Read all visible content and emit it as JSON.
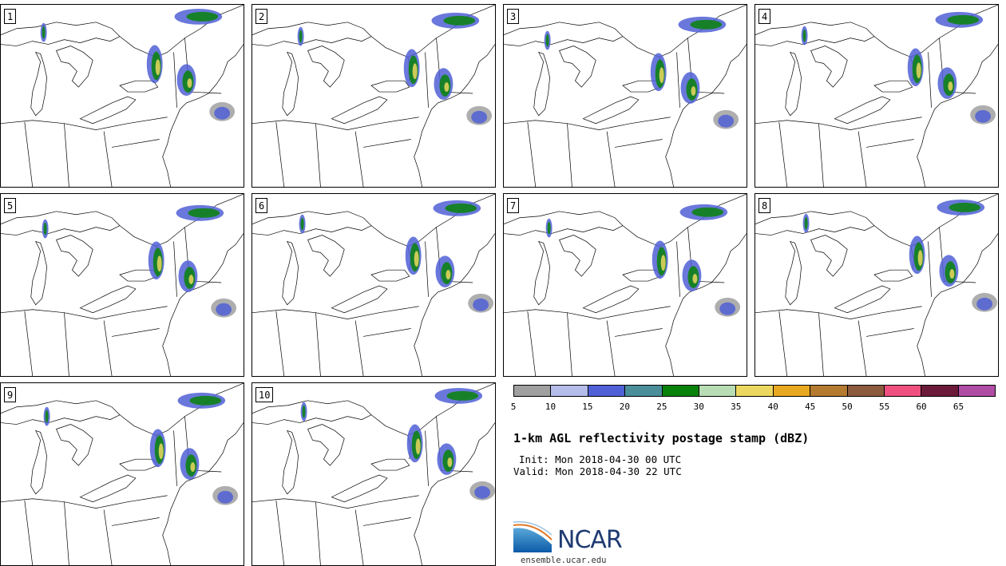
{
  "panels": [
    {
      "label": "1"
    },
    {
      "label": "2"
    },
    {
      "label": "3"
    },
    {
      "label": "4"
    },
    {
      "label": "5"
    },
    {
      "label": "6"
    },
    {
      "label": "7"
    },
    {
      "label": "8"
    },
    {
      "label": "9"
    },
    {
      "label": "10"
    }
  ],
  "colorbar": {
    "colors": [
      "#a0a0a0",
      "#b4bcea",
      "#5060d6",
      "#4a8e9a",
      "#08820a",
      "#b8dcb4",
      "#ecd860",
      "#e8a820",
      "#b47a30",
      "#8c5a3c",
      "#f05080",
      "#6c1a3a",
      "#b04ca4"
    ],
    "ticks": [
      "5",
      "10",
      "15",
      "20",
      "25",
      "30",
      "35",
      "40",
      "45",
      "50",
      "55",
      "60",
      "65"
    ]
  },
  "title": "1-km AGL reflectivity postage stamp (dBZ)",
  "init": "Init: Mon 2018-04-30 00 UTC",
  "valid": "Valid: Mon 2018-04-30 22 UTC",
  "logo": {
    "text": "NCAR"
  },
  "site": "ensemble.ucar.edu"
}
